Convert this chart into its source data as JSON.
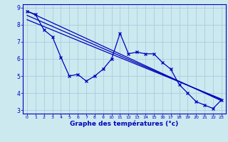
{
  "xlabel": "Graphe des températures (°c)",
  "x_values": [
    0,
    1,
    2,
    3,
    4,
    5,
    6,
    7,
    8,
    9,
    10,
    11,
    12,
    13,
    14,
    15,
    16,
    17,
    18,
    19,
    20,
    21,
    22,
    23
  ],
  "main_line": [
    8.8,
    8.6,
    7.7,
    7.3,
    6.1,
    5.0,
    5.1,
    4.7,
    5.0,
    5.4,
    6.0,
    7.5,
    6.3,
    6.4,
    6.3,
    6.3,
    5.8,
    5.4,
    4.5,
    4.0,
    3.5,
    3.3,
    3.1,
    3.6
  ],
  "trend1_x": [
    0,
    23
  ],
  "trend1_y": [
    8.8,
    3.55
  ],
  "trend2_x": [
    0,
    23
  ],
  "trend2_y": [
    8.55,
    3.6
  ],
  "trend3_x": [
    0,
    23
  ],
  "trend3_y": [
    8.3,
    3.65
  ],
  "ylim": [
    2.8,
    9.2
  ],
  "xlim": [
    -0.5,
    23.5
  ],
  "bg_color": "#cce9f0",
  "line_color": "#0000bb",
  "grid_color": "#aaccdd",
  "tick_label_color": "#0000bb",
  "xlabel_color": "#0000bb",
  "xticks": [
    0,
    1,
    2,
    3,
    4,
    5,
    6,
    7,
    8,
    9,
    10,
    11,
    12,
    13,
    14,
    15,
    16,
    17,
    18,
    19,
    20,
    21,
    22,
    23
  ],
  "yticks": [
    3,
    4,
    5,
    6,
    7,
    8,
    9
  ]
}
